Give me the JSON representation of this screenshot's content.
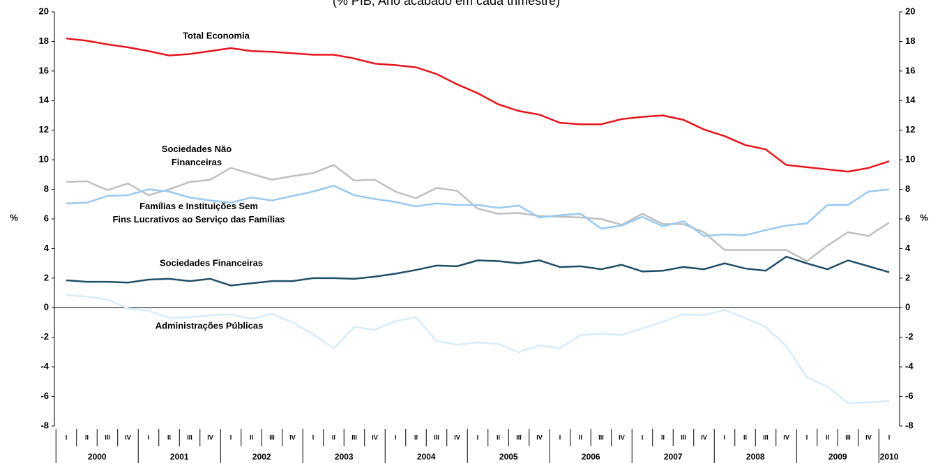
{
  "chart_data": {
    "type": "line",
    "title": "(% PIB, Ano acabado em cada trimestre)",
    "ylabel": "%",
    "y2label": "%",
    "categories": [
      "I",
      "II",
      "III",
      "IV",
      "I",
      "II",
      "III",
      "IV",
      "I",
      "II",
      "III",
      "IV",
      "I",
      "II",
      "III",
      "IV",
      "I",
      "II",
      "III",
      "IV",
      "I",
      "II",
      "III",
      "IV",
      "I",
      "II",
      "III",
      "IV",
      "I",
      "II",
      "III",
      "IV",
      "I",
      "II",
      "III",
      "IV",
      "I",
      "II",
      "III",
      "IV",
      "I"
    ],
    "years": [
      "2000",
      "2001",
      "2002",
      "2003",
      "2004",
      "2005",
      "2006",
      "2007",
      "2008",
      "2009",
      "2010"
    ],
    "ylim": [
      -8,
      20
    ],
    "yticks": [
      -8,
      -6,
      -4,
      -2,
      0,
      2,
      4,
      6,
      8,
      10,
      12,
      14,
      16,
      18,
      20
    ],
    "y2lim": [
      -8,
      20
    ],
    "y2ticks": [
      -8,
      -6,
      -4,
      -2,
      0,
      2,
      4,
      6,
      8,
      10,
      12,
      14,
      16,
      18,
      20
    ],
    "series": [
      {
        "name": "Total Economia",
        "color": "#e8141b",
        "values": [
          18.2,
          18.05,
          17.8,
          17.6,
          17.35,
          17.05,
          17.15,
          17.35,
          17.55,
          17.35,
          17.3,
          17.2,
          17.1,
          17.1,
          16.85,
          16.5,
          16.4,
          16.25,
          15.8,
          15.1,
          14.5,
          13.75,
          13.3,
          13.05,
          12.5,
          12.4,
          12.4,
          12.75,
          12.9,
          13.0,
          12.7,
          12.05,
          11.6,
          11.0,
          10.7,
          9.65,
          9.5,
          9.35,
          9.2,
          9.45,
          9.9
        ]
      },
      {
        "name": "Sociedades Não Financeiras",
        "color": "#bfbfbf",
        "values": [
          8.5,
          8.55,
          7.95,
          8.4,
          7.6,
          8.0,
          8.5,
          8.65,
          9.45,
          9.05,
          8.65,
          8.9,
          9.1,
          9.65,
          8.6,
          8.65,
          7.85,
          7.4,
          8.1,
          7.9,
          6.7,
          6.35,
          6.4,
          6.2,
          6.15,
          6.1,
          6.0,
          5.6,
          6.35,
          5.65,
          5.65,
          5.1,
          3.9,
          3.9,
          3.9,
          3.9,
          3.15,
          4.2,
          5.1,
          4.85,
          5.75
        ]
      },
      {
        "name": "Famílias e Instituições Sem Fins Lucrativos ao Serviço das Famílias",
        "color": "#99c9f2",
        "values": [
          7.05,
          7.1,
          7.55,
          7.6,
          8.0,
          7.85,
          7.45,
          7.25,
          7.1,
          7.45,
          7.25,
          7.55,
          7.85,
          8.25,
          7.6,
          7.35,
          7.15,
          6.85,
          7.05,
          6.95,
          6.95,
          6.75,
          6.9,
          6.1,
          6.25,
          6.35,
          5.35,
          5.55,
          6.15,
          5.5,
          5.85,
          4.85,
          4.95,
          4.9,
          5.25,
          5.55,
          5.7,
          6.95,
          6.95,
          7.85,
          8.0
        ]
      },
      {
        "name": "Sociedades Financeiras",
        "color": "#1f4e66",
        "values": [
          1.85,
          1.75,
          1.75,
          1.7,
          1.9,
          1.95,
          1.8,
          1.95,
          1.5,
          1.65,
          1.8,
          1.8,
          2.0,
          2.0,
          1.95,
          2.1,
          2.3,
          2.55,
          2.85,
          2.8,
          3.2,
          3.15,
          3.0,
          3.2,
          2.75,
          2.8,
          2.6,
          2.9,
          2.45,
          2.5,
          2.75,
          2.6,
          3.0,
          2.65,
          2.5,
          3.45,
          3.0,
          2.6,
          3.2,
          2.8,
          2.4
        ]
      },
      {
        "name": "Administrações Públicas",
        "color": "#d6ecfa",
        "values": [
          0.85,
          0.75,
          0.55,
          -0.05,
          -0.2,
          -0.7,
          -0.65,
          -0.5,
          -0.45,
          -0.75,
          -0.4,
          -1.0,
          -1.8,
          -2.75,
          -1.3,
          -1.5,
          -0.9,
          -0.65,
          -2.25,
          -2.5,
          -2.35,
          -2.45,
          -3.0,
          -2.55,
          -2.75,
          -1.85,
          -1.75,
          -1.85,
          -1.4,
          -0.95,
          -0.45,
          -0.5,
          -0.15,
          -0.7,
          -1.3,
          -2.6,
          -4.7,
          -5.35,
          -6.45,
          -6.4,
          -6.3
        ]
      }
    ]
  }
}
